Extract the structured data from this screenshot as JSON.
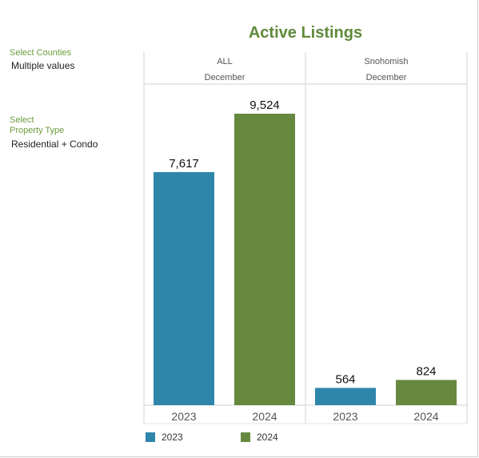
{
  "filters": {
    "counties": {
      "label": "Select Counties",
      "value": "Multiple values"
    },
    "property_type": {
      "label_line1": "Select",
      "label_line2": "Property Type",
      "value": "Residential + Condo"
    }
  },
  "legend": [
    {
      "label": "2023",
      "color": "#2e86ab"
    },
    {
      "label": "2024",
      "color": "#66883f"
    }
  ],
  "chart_data": {
    "type": "bar",
    "title": "Active Listings",
    "panels": [
      {
        "region": "ALL",
        "month": "December"
      },
      {
        "region": "Snohomish",
        "month": "December"
      }
    ],
    "categories": [
      "2023",
      "2024"
    ],
    "series": [
      {
        "name": "ALL",
        "values": [
          7617,
          9524
        ]
      },
      {
        "name": "Snohomish",
        "values": [
          564,
          824
        ]
      }
    ],
    "colors": [
      "#2e86ab",
      "#66883f"
    ],
    "ylim": [
      0,
      10000
    ],
    "grid": false,
    "legend_position": "bottom"
  }
}
